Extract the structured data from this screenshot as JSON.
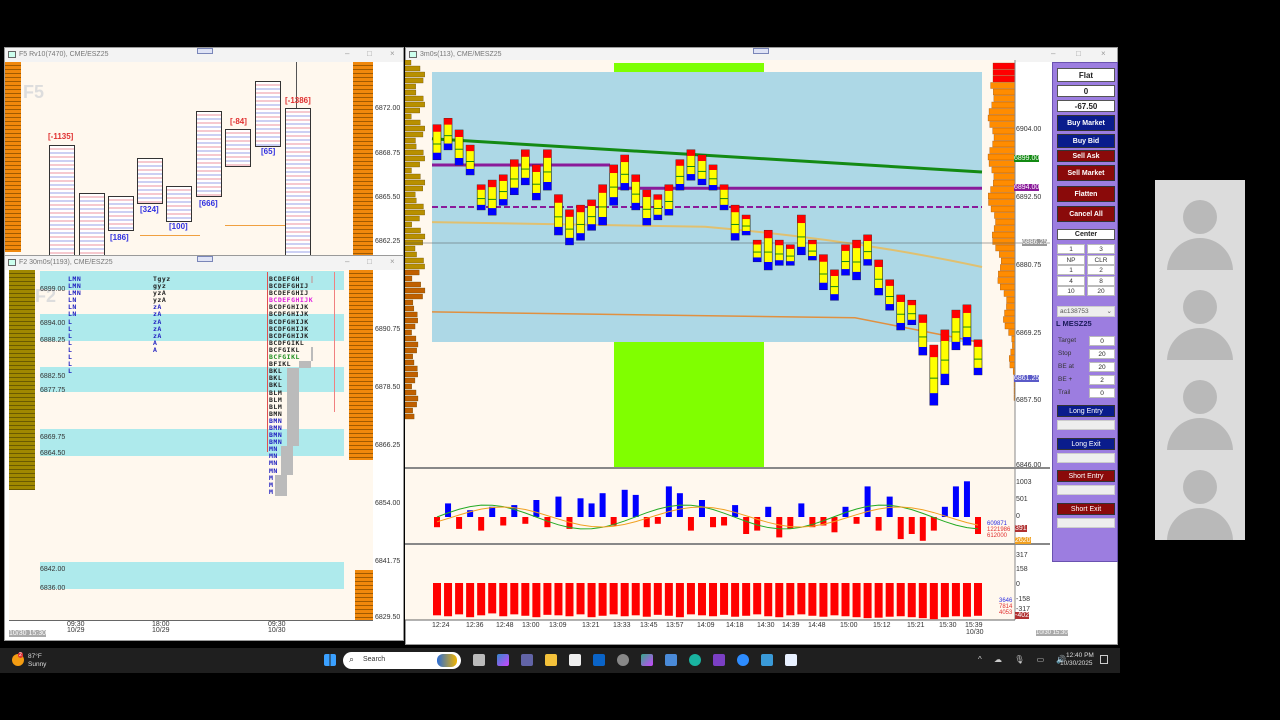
{
  "colors": {
    "accent_panel": "#9c7de0",
    "buy": "#0a1c8c",
    "sell": "#8a0a0a",
    "candle_body": "#ffff00",
    "up": "#0000ff",
    "down": "#ff0000",
    "session_band": "#80ff00",
    "value_area": "#add8e6"
  },
  "footprint_window": {
    "title": "F5 Rv10(7470), CME/ESZ25",
    "watermark": "F5",
    "prices": [
      "6872.00",
      "6868.75",
      "6865.50",
      "6862.25"
    ],
    "deltas": [
      "[-1135]",
      "[186]",
      "[324]",
      "[100]",
      "[666]",
      "[-84]",
      "[65]",
      "[-1386]"
    ]
  },
  "tpo_window": {
    "title": "F2 30m0s(1193), CME/ESZ25",
    "watermark": "F2",
    "prices": [
      "6890.75",
      "6878.50",
      "6866.25",
      "6854.00",
      "6841.75",
      "6829.50"
    ],
    "levels": [
      "6899.00",
      "6894.00",
      "6888.25",
      "6882.50",
      "6877.75",
      "6869.75",
      "6864.50",
      "6842.00",
      "6836.00"
    ],
    "times": [
      {
        "t": "09:30",
        "d": "10/29"
      },
      {
        "t": "18:00",
        "d": "10/29"
      },
      {
        "t": "09:30",
        "d": "10/30"
      }
    ],
    "cursor_time": "10/30 15:30",
    "col1": [
      "LMN",
      "LMN",
      "LMN",
      "LN",
      "LN",
      "LN",
      "L",
      "L",
      "L",
      "L",
      "L",
      "L",
      "L",
      "L"
    ],
    "col2": [
      "Tgyz",
      "gyz",
      "yzA",
      "yzA",
      "zA",
      "zA",
      "zA",
      "zA",
      "zA",
      "A",
      "A"
    ],
    "col3": [
      "BCDEFGH",
      "BCDEFGHIJ",
      "BCDEFGHIJ",
      "BCDEFGHIJK",
      "BCDFGHIJK",
      "BCDFGHIJK",
      "BCDFGHIJK",
      "BCDFGHIJK",
      "BCDFGHIJK",
      "BCDFGIKL",
      "BCFGIKL",
      "BCFGIKL",
      "BFIKL",
      "BKL",
      "BKL",
      "BKL",
      "BLM",
      "BLM",
      "BLM",
      "BMN",
      "BMN",
      "BMN",
      "BMN",
      "BMN",
      "MN",
      "MN",
      "MN",
      "MN",
      "M",
      "M",
      "M"
    ]
  },
  "main_window": {
    "title": "3m0s(113), CME/MESZ25",
    "price_axis": [
      "6904.00",
      "6892.50",
      "6880.75",
      "6869.25",
      "6857.50",
      "6846.00"
    ],
    "badges": {
      "green": "6899.00",
      "purple": "6894.00",
      "cursor": "6886.25",
      "last": "6861.25"
    },
    "delta_axis": [
      "1003",
      "501",
      "0"
    ],
    "delta_badges": {
      "red": "391",
      "orange": "2620"
    },
    "delta_stats": [
      "609871",
      "1221986",
      "612000"
    ],
    "vol_axis": [
      "317",
      "158",
      "0",
      "-158",
      "-317"
    ],
    "vol_badge": "-402",
    "vol_stats": [
      "3646",
      "7814",
      "4053"
    ],
    "times": [
      "12:24",
      "12:36",
      "12:48",
      "13:00",
      "13:09",
      "13:21",
      "13:33",
      "13:45",
      "13:57",
      "14:09",
      "14:18",
      "14:30",
      "14:39",
      "14:48",
      "15:00",
      "15:12",
      "15:21",
      "15:30",
      "15:39"
    ],
    "last_date": "10/30",
    "corner_time": "10/30 15:30"
  },
  "chart_data": {
    "type": "candlestick",
    "candles_high_low": [
      [
        6904.9,
        6898.9
      ],
      [
        6906,
        6900.6
      ],
      [
        6904,
        6898
      ],
      [
        6901.4,
        6896.3
      ],
      [
        6894.6,
        6890.3
      ],
      [
        6895.4,
        6889.4
      ],
      [
        6896.3,
        6891.1
      ],
      [
        6898.9,
        6892.9
      ],
      [
        6900.6,
        6894.6
      ],
      [
        6898,
        6892
      ],
      [
        6900.6,
        6893.7
      ],
      [
        6892.9,
        6886
      ],
      [
        6890.3,
        6884.3
      ],
      [
        6891.1,
        6885.1
      ],
      [
        6892,
        6886.8
      ],
      [
        6894.6,
        6887.7
      ],
      [
        6898,
        6891.1
      ],
      [
        6899.7,
        6893.7
      ],
      [
        6896.3,
        6890.3
      ],
      [
        6893.7,
        6887.7
      ],
      [
        6892.9,
        6888.6
      ],
      [
        6894.6,
        6889.4
      ],
      [
        6898.9,
        6893.7
      ],
      [
        6900.6,
        6895.4
      ],
      [
        6899.7,
        6894.6
      ],
      [
        6898,
        6893.7
      ],
      [
        6894.6,
        6890.3
      ],
      [
        6891.1,
        6885.1
      ],
      [
        6889.4,
        6886
      ],
      [
        6885.1,
        6881.4
      ],
      [
        6886.8,
        6880
      ],
      [
        6885.1,
        6880.8
      ],
      [
        6884.3,
        6880.8
      ],
      [
        6889.4,
        6882.6
      ],
      [
        6885.1,
        6881.7
      ],
      [
        6882.6,
        6876.6
      ],
      [
        6880,
        6874.8
      ],
      [
        6884.3,
        6879.1
      ],
      [
        6885.1,
        6878.3
      ],
      [
        6886,
        6880.8
      ],
      [
        6881.7,
        6875.7
      ],
      [
        6878.3,
        6873.1
      ],
      [
        6875.7,
        6869.7
      ],
      [
        6874.8,
        6870.6
      ],
      [
        6872.3,
        6865.4
      ],
      [
        6867.1,
        6856.8
      ],
      [
        6869.7,
        6860.3
      ],
      [
        6873.1,
        6866.3
      ],
      [
        6874,
        6867.1
      ],
      [
        6868,
        6862
      ]
    ],
    "delta": [
      -300,
      400,
      -350,
      200,
      -400,
      300,
      -250,
      350,
      -200,
      500,
      -300,
      600,
      -350,
      550,
      400,
      700,
      -250,
      800,
      650,
      -300,
      -200,
      900,
      700,
      -400,
      500,
      -300,
      -250,
      350,
      -500,
      -400,
      300,
      -600,
      -350,
      400,
      -300,
      -250,
      -450,
      300,
      -200,
      900,
      -400,
      600,
      -650,
      -500,
      -700,
      -400,
      300,
      900,
      1050,
      -500
    ],
    "volume": [
      -340,
      -350,
      -330,
      -360,
      -340,
      -320,
      -350,
      -330,
      -345,
      -360,
      -335,
      -340,
      -350,
      -330,
      -360,
      -345,
      -330,
      -350,
      -340,
      -355,
      -335,
      -345,
      -360,
      -330,
      -340,
      -350,
      -335,
      -355,
      -345,
      -330,
      -350,
      -360,
      -340,
      -330,
      -345,
      -355,
      -340,
      -350,
      -360,
      -370,
      -365,
      -355,
      -350,
      -360,
      -370,
      -380,
      -360,
      -350,
      -355,
      -345
    ],
    "price_range": [
      6846,
      6906
    ],
    "levels": {
      "upper_green": [
        6902.5,
        6896.8
      ],
      "purple_solid_1": 6898,
      "purple_solid_2": 6894,
      "purple_dashed": 6890.8,
      "tan": [
        6888.2,
        6880.5
      ],
      "orange": [
        6872.8,
        6870.5
      ]
    }
  },
  "order_panel": {
    "position": "Flat",
    "qty": "0",
    "pnl": "-67.50",
    "buy_market": "Buy Market",
    "buy_bid": "Buy Bid",
    "sell_ask": "Sell Ask",
    "sell_market": "Sell Market",
    "flatten": "Flatten",
    "cancel_all": "Cancel All",
    "center": "Center",
    "qty_cells": [
      "1",
      "3",
      "NP",
      "CLR",
      "1",
      "2",
      "4",
      "8",
      "10",
      "20"
    ],
    "account": "ac138753",
    "symbol": "L MESZ25",
    "fields": [
      {
        "label": "Target",
        "value": "0"
      },
      {
        "label": "Stop",
        "value": "20"
      },
      {
        "label": "BE at",
        "value": "20"
      },
      {
        "label": "BE +",
        "value": "2"
      },
      {
        "label": "Trail",
        "value": "0"
      }
    ],
    "long_entry": "Long Entry",
    "long_exit": "Long Exit",
    "short_entry": "Short Entry",
    "short_exit": "Short Exit"
  },
  "taskbar": {
    "weather_temp": "87°F",
    "weather_desc": "Sunny",
    "weather_badge": "2",
    "search": "Search",
    "time": "12:40 PM",
    "date": "10/30/2025"
  }
}
